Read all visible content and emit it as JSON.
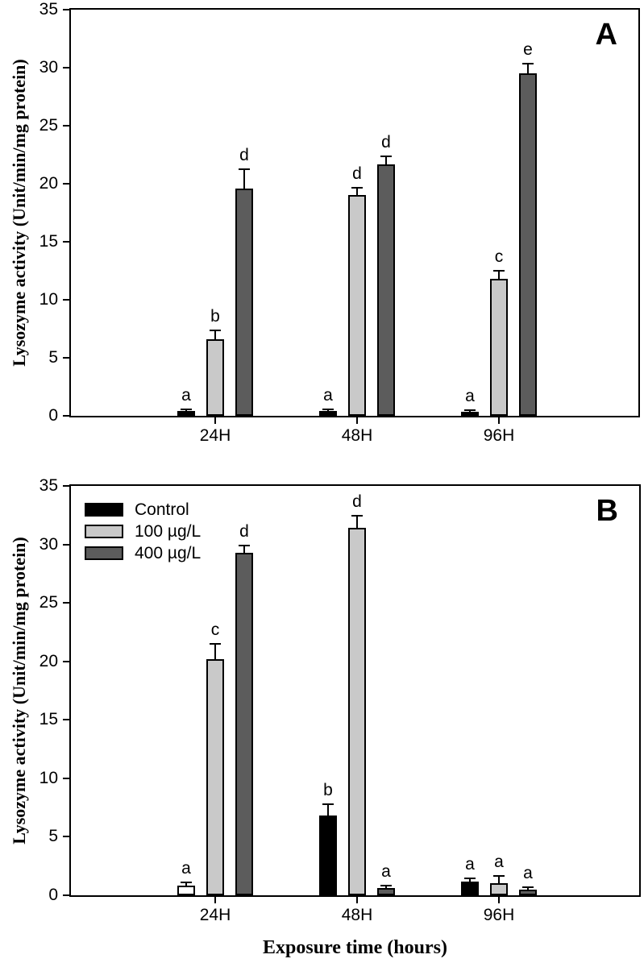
{
  "figure": {
    "xlabel": "Exposure time (hours)",
    "ylabel": "Lysozyme activity (Unit/min/mg protein)"
  },
  "chart_data": [
    {
      "type": "bar",
      "panel_label": "A",
      "title": "",
      "xlabel": "",
      "ylabel": "Lysozyme activity (Unit/min/mg protein)",
      "ylim": [
        0,
        35
      ],
      "yticks": [
        0,
        5,
        10,
        15,
        20,
        25,
        30,
        35
      ],
      "categories": [
        "24H",
        "48H",
        "96H"
      ],
      "grid": false,
      "legend_position": "none",
      "series": [
        {
          "name": "Control",
          "color": "#000000",
          "values": [
            0.4,
            0.4,
            0.35
          ],
          "errors": [
            0.1,
            0.1,
            0.1
          ],
          "letters": [
            "a",
            "a",
            "a"
          ]
        },
        {
          "name": "100 µg/L",
          "color": "#c9c9c9",
          "values": [
            6.6,
            19.0,
            11.8
          ],
          "errors": [
            0.7,
            0.6,
            0.6
          ],
          "letters": [
            "b",
            "d",
            "c"
          ]
        },
        {
          "name": "400 µg/L",
          "color": "#5c5c5c",
          "values": [
            19.6,
            21.7,
            29.5
          ],
          "errors": [
            1.6,
            0.6,
            0.8
          ],
          "letters": [
            "d",
            "d",
            "e"
          ]
        }
      ]
    },
    {
      "type": "bar",
      "panel_label": "B",
      "title": "",
      "xlabel": "Exposure time (hours)",
      "ylabel": "Lysozyme activity (Unit/min/mg protein)",
      "ylim": [
        0,
        35
      ],
      "yticks": [
        0,
        5,
        10,
        15,
        20,
        25,
        30,
        35
      ],
      "categories": [
        "24H",
        "48H",
        "96H"
      ],
      "grid": false,
      "legend_position": "upper-left",
      "legend": [
        "Control",
        "100 µg/L",
        "400 µg/L"
      ],
      "series": [
        {
          "name": "Control",
          "color": "#000000",
          "bar_colors": [
            "#ffffff",
            "#000000",
            "#000000"
          ],
          "values": [
            0.85,
            6.8,
            1.15
          ],
          "errors": [
            0.2,
            0.9,
            0.2
          ],
          "letters": [
            "a",
            "b",
            "a"
          ]
        },
        {
          "name": "100 µg/L",
          "color": "#c9c9c9",
          "values": [
            20.2,
            31.4,
            1.05
          ],
          "errors": [
            1.2,
            1.0,
            0.55
          ],
          "letters": [
            "c",
            "d",
            "a"
          ]
        },
        {
          "name": "400 µg/L",
          "color": "#5c5c5c",
          "values": [
            29.3,
            0.6,
            0.5
          ],
          "errors": [
            0.5,
            0.15,
            0.1
          ],
          "letters": [
            "d",
            "a",
            "a"
          ]
        }
      ]
    }
  ]
}
